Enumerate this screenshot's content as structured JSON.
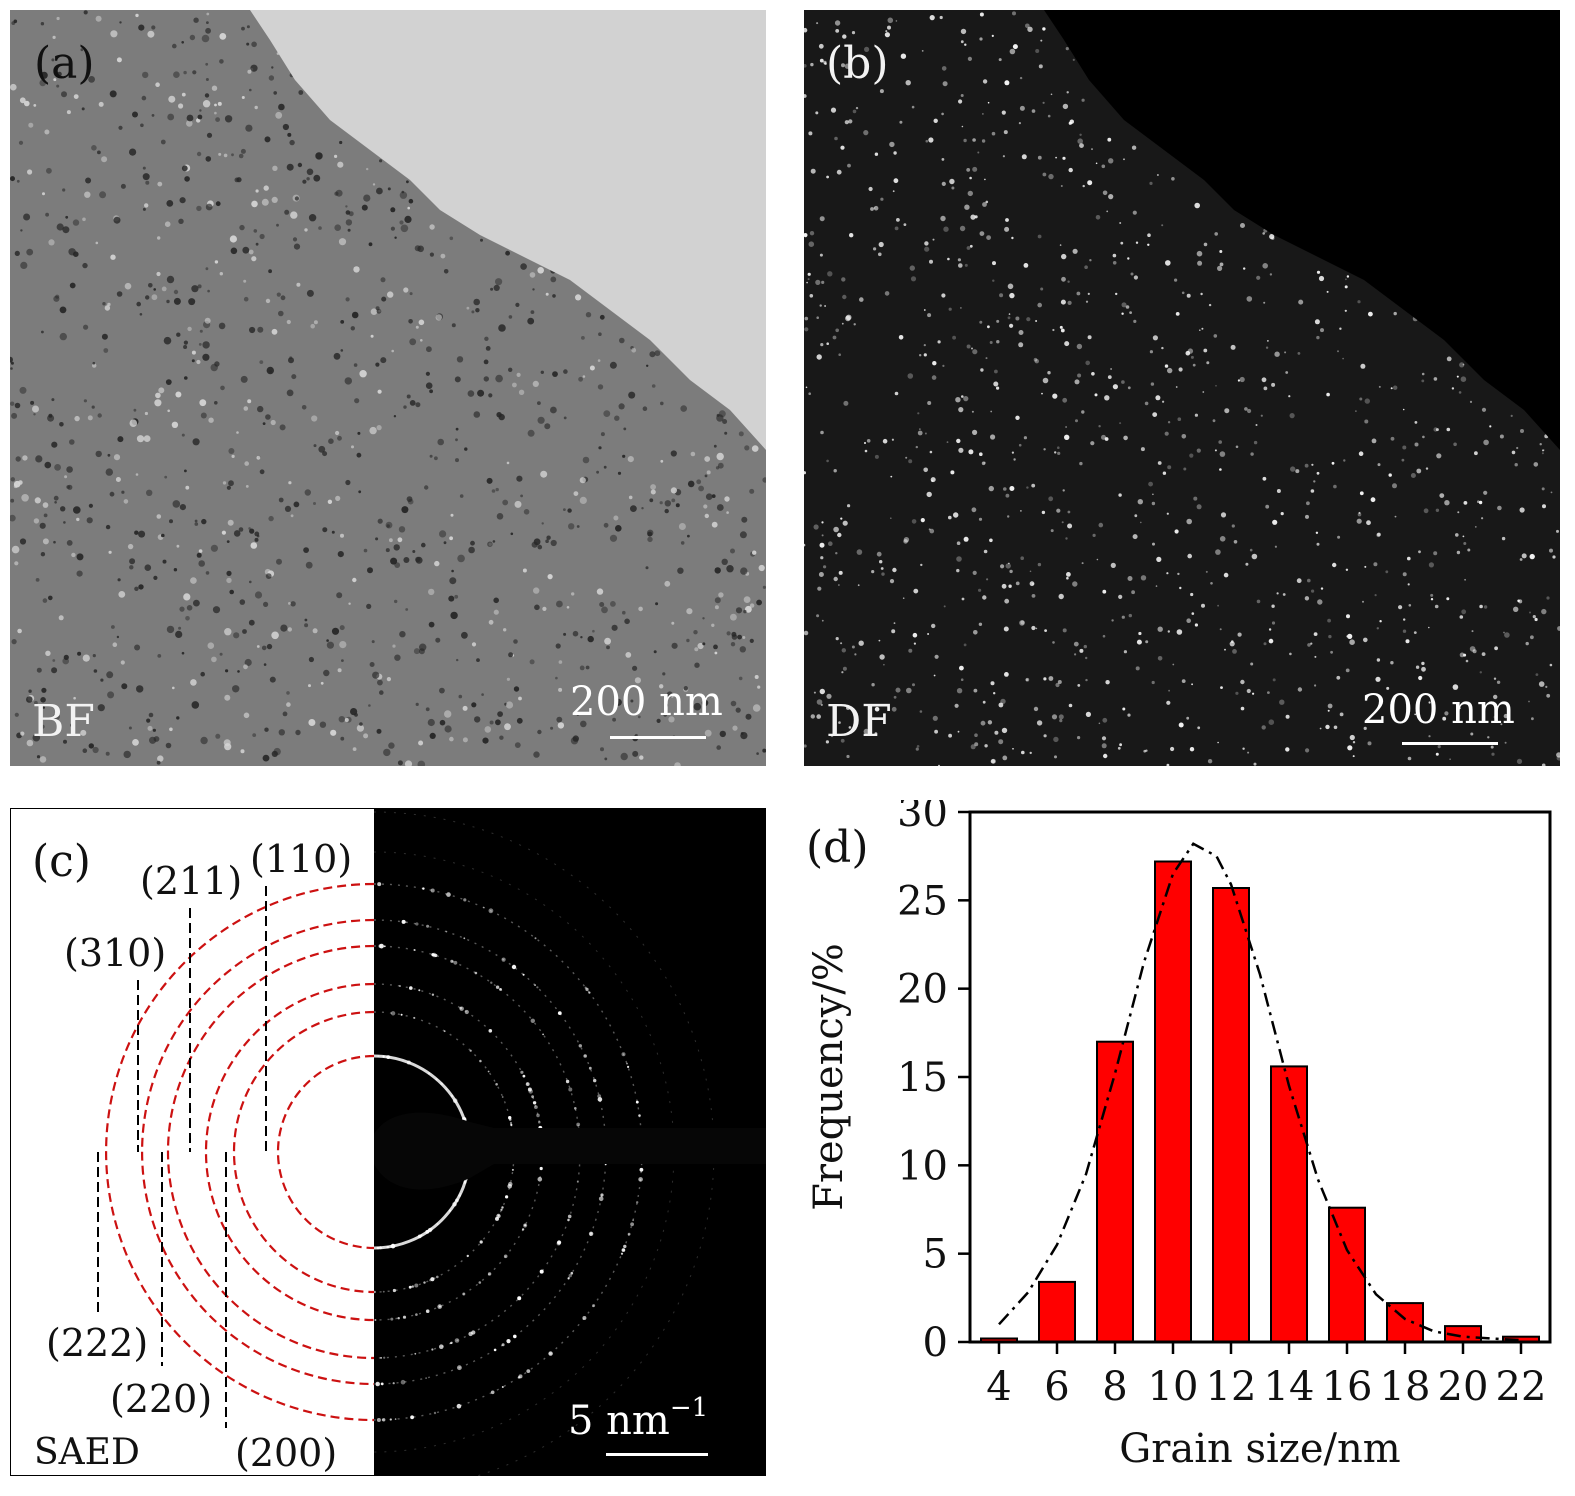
{
  "panels": {
    "a": {
      "label": "(a)",
      "mode": "BF",
      "scale": "200 nm"
    },
    "b": {
      "label": "(b)",
      "mode": "DF",
      "scale": "200 nm"
    },
    "c": {
      "label": "(c)",
      "mode": "SAED",
      "scale": "5 nm",
      "scale_exp": "−1",
      "planes": [
        "(110)",
        "(200)",
        "(211)",
        "(220)",
        "(310)",
        "(222)"
      ]
    },
    "d": {
      "label": "(d)"
    }
  },
  "colors": {
    "ring": "#cc1111",
    "bar_fill": "#ff0000",
    "bf_bg": "#7c7c7c",
    "bf_hole": "#d2d2d2",
    "df_bg": "#181818"
  },
  "chart_data": {
    "type": "bar",
    "xlabel": "Grain size/nm",
    "ylabel": "Frequency/%",
    "categories": [
      "4",
      "6",
      "8",
      "10",
      "12",
      "14",
      "16",
      "18",
      "20",
      "22"
    ],
    "x": [
      4,
      6,
      8,
      10,
      12,
      14,
      16,
      18,
      20,
      22
    ],
    "values": [
      0.2,
      3.4,
      17.0,
      27.2,
      25.7,
      15.6,
      7.6,
      2.2,
      0.9,
      0.3
    ],
    "fit": {
      "type": "gaussian-fit",
      "style": "dash-dot",
      "points": [
        [
          4,
          1.0
        ],
        [
          5,
          2.8
        ],
        [
          6,
          5.5
        ],
        [
          7,
          9.5
        ],
        [
          8,
          15.2
        ],
        [
          9,
          21.5
        ],
        [
          10,
          26.5
        ],
        [
          10.7,
          28.2
        ],
        [
          11.5,
          27.5
        ],
        [
          12,
          25.9
        ],
        [
          13,
          20.8
        ],
        [
          14,
          14.5
        ],
        [
          15,
          9.2
        ],
        [
          16,
          5.2
        ],
        [
          17,
          2.7
        ],
        [
          18,
          1.3
        ],
        [
          19,
          0.6
        ],
        [
          20,
          0.3
        ],
        [
          21,
          0.2
        ],
        [
          22,
          0.1
        ]
      ]
    },
    "xlim": [
      3,
      23
    ],
    "ylim": [
      0,
      30
    ],
    "yticks": [
      0,
      5,
      10,
      15,
      20,
      25,
      30
    ],
    "grid": false,
    "legend": "none"
  }
}
